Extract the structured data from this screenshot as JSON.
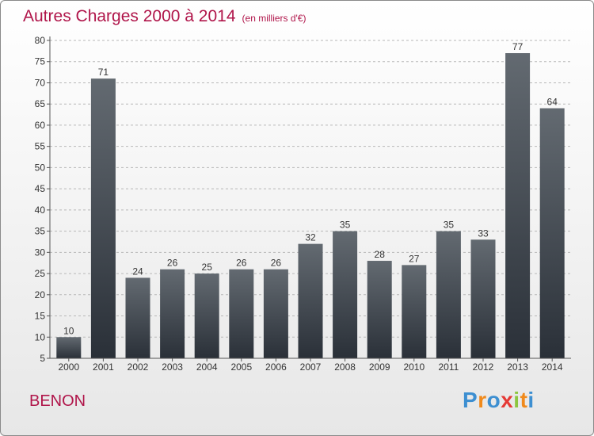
{
  "title": "Autres Charges 2000 à 2014",
  "unit": "(en milliers d'€)",
  "commune": "BENON",
  "brand": {
    "text": "Proxiti",
    "colors": [
      "#3d8fd1",
      "#f08a1c",
      "#3d8fd1",
      "#e53935",
      "#8cc63f",
      "#f08a1c",
      "#3d8fd1"
    ]
  },
  "colors": {
    "title": "#b0154a",
    "bar_top": "#636a71",
    "bar_bottom": "#2a3038",
    "grid": "#b8b8b8"
  },
  "chart_data": {
    "type": "bar",
    "title": "Autres Charges 2000 à 2014",
    "categories": [
      "2000",
      "2001",
      "2002",
      "2003",
      "2004",
      "2005",
      "2006",
      "2007",
      "2008",
      "2009",
      "2010",
      "2011",
      "2012",
      "2013",
      "2014"
    ],
    "values": [
      10,
      71,
      24,
      26,
      25,
      26,
      26,
      32,
      35,
      28,
      27,
      35,
      33,
      77,
      64
    ],
    "ylim": [
      5,
      80
    ],
    "yticks": [
      5,
      10,
      15,
      20,
      25,
      30,
      35,
      40,
      45,
      50,
      55,
      60,
      65,
      70,
      75,
      80
    ],
    "grid": "horizontal dashed",
    "data_labels": true
  }
}
